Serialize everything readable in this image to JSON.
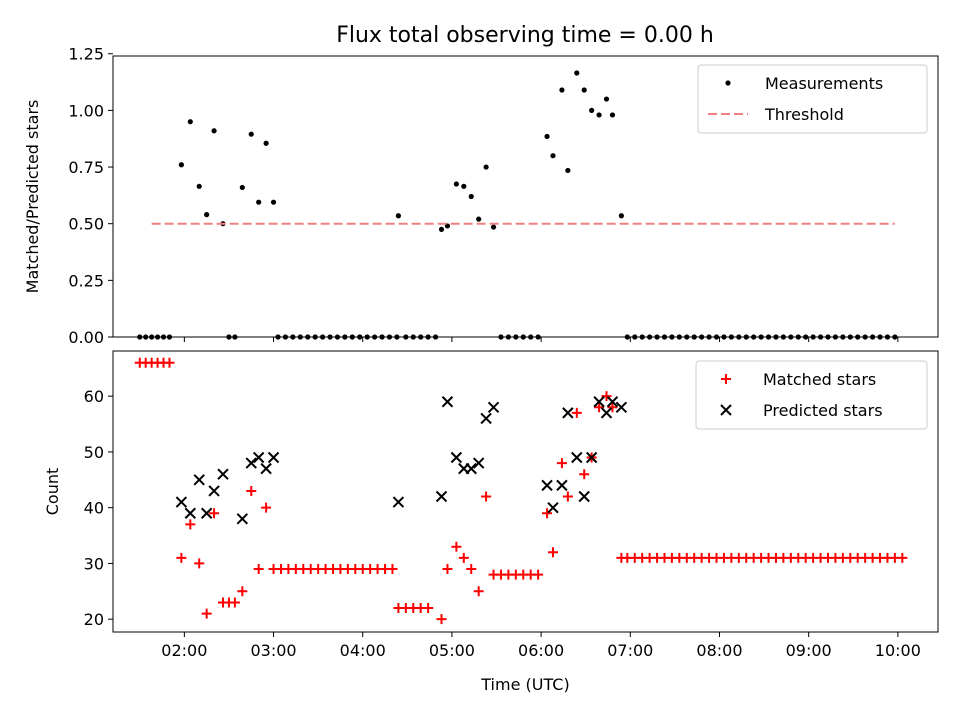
{
  "figure": {
    "title": "Flux total observing time = 0.00 h"
  },
  "chart_data": [
    {
      "type": "scatter",
      "ylabel": "Matched/Predicted stars",
      "xlabel": "",
      "x_format": "time-HH:MM",
      "xlim": [
        "01:12",
        "10:27"
      ],
      "ylim": [
        0,
        1.24
      ],
      "y_ticks": [
        0.0,
        0.25,
        0.5,
        0.75,
        1.0,
        1.25
      ],
      "y_tick_labels": [
        "0.00",
        "0.25",
        "0.50",
        "0.75",
        "1.00",
        "1.25"
      ],
      "x_ticks": [
        "02:00",
        "03:00",
        "04:00",
        "05:00",
        "06:00",
        "07:00",
        "08:00",
        "09:00",
        "10:00"
      ],
      "legend": {
        "placement": "top-right",
        "entries": [
          {
            "label": "Measurements",
            "marker": "dot",
            "color": "#000000"
          },
          {
            "label": "Threshold",
            "marker": "dashed-line",
            "color": "#f08080"
          }
        ]
      },
      "series": [
        {
          "name": "Measurements",
          "marker": "dot",
          "color": "#000000",
          "points": [
            [
              "01:30",
              0
            ],
            [
              "01:34",
              0
            ],
            [
              "01:38",
              0
            ],
            [
              "01:42",
              0
            ],
            [
              "01:46",
              0
            ],
            [
              "01:50",
              0
            ],
            [
              "01:58",
              0.76
            ],
            [
              "02:04",
              0.95
            ],
            [
              "02:10",
              0.665
            ],
            [
              "02:15",
              0.54
            ],
            [
              "02:20",
              0.91
            ],
            [
              "02:26",
              0.5
            ],
            [
              "02:30",
              0
            ],
            [
              "02:34",
              0
            ],
            [
              "02:39",
              0.66
            ],
            [
              "02:45",
              0.895
            ],
            [
              "02:50",
              0.595
            ],
            [
              "02:55",
              0.855
            ],
            [
              "03:00",
              0.595
            ],
            [
              "03:03",
              0
            ],
            [
              "03:08",
              0
            ],
            [
              "03:13",
              0
            ],
            [
              "03:18",
              0
            ],
            [
              "03:23",
              0
            ],
            [
              "03:28",
              0
            ],
            [
              "03:33",
              0
            ],
            [
              "03:38",
              0
            ],
            [
              "03:43",
              0
            ],
            [
              "03:48",
              0
            ],
            [
              "03:53",
              0
            ],
            [
              "03:58",
              0
            ],
            [
              "04:03",
              0
            ],
            [
              "04:08",
              0
            ],
            [
              "04:13",
              0
            ],
            [
              "04:18",
              0
            ],
            [
              "04:23",
              0
            ],
            [
              "04:24",
              0.535
            ],
            [
              "04:29",
              0
            ],
            [
              "04:34",
              0
            ],
            [
              "04:39",
              0
            ],
            [
              "04:44",
              0
            ],
            [
              "04:49",
              0
            ],
            [
              "04:53",
              0.475
            ],
            [
              "04:57",
              0.49
            ],
            [
              "05:03",
              0.675
            ],
            [
              "05:08",
              0.665
            ],
            [
              "05:13",
              0.62
            ],
            [
              "05:18",
              0.52
            ],
            [
              "05:23",
              0.75
            ],
            [
              "05:28",
              0.485
            ],
            [
              "05:33",
              0
            ],
            [
              "05:38",
              0
            ],
            [
              "05:43",
              0
            ],
            [
              "05:48",
              0
            ],
            [
              "05:53",
              0
            ],
            [
              "05:58",
              0
            ],
            [
              "06:04",
              0.885
            ],
            [
              "06:08",
              0.8
            ],
            [
              "06:14",
              1.09
            ],
            [
              "06:18",
              0.735
            ],
            [
              "06:24",
              1.165
            ],
            [
              "06:29",
              1.09
            ],
            [
              "06:34",
              1.0
            ],
            [
              "06:39",
              0.98
            ],
            [
              "06:44",
              1.05
            ],
            [
              "06:48",
              0.98
            ],
            [
              "06:54",
              0.535
            ],
            [
              "06:58",
              0
            ],
            [
              "07:03",
              0
            ],
            [
              "07:08",
              0
            ],
            [
              "07:13",
              0
            ],
            [
              "07:18",
              0
            ],
            [
              "07:23",
              0
            ],
            [
              "07:28",
              0
            ],
            [
              "07:33",
              0
            ],
            [
              "07:38",
              0
            ],
            [
              "07:43",
              0
            ],
            [
              "07:48",
              0
            ],
            [
              "07:53",
              0
            ],
            [
              "07:58",
              0
            ],
            [
              "08:03",
              0
            ],
            [
              "08:08",
              0
            ],
            [
              "08:13",
              0
            ],
            [
              "08:18",
              0
            ],
            [
              "08:23",
              0
            ],
            [
              "08:28",
              0
            ],
            [
              "08:33",
              0
            ],
            [
              "08:38",
              0
            ],
            [
              "08:43",
              0
            ],
            [
              "08:48",
              0
            ],
            [
              "08:53",
              0
            ],
            [
              "08:58",
              0
            ],
            [
              "09:03",
              0
            ],
            [
              "09:08",
              0
            ],
            [
              "09:13",
              0
            ],
            [
              "09:18",
              0
            ],
            [
              "09:23",
              0
            ],
            [
              "09:28",
              0
            ],
            [
              "09:33",
              0
            ],
            [
              "09:38",
              0
            ],
            [
              "09:43",
              0
            ],
            [
              "09:48",
              0
            ],
            [
              "09:53",
              0
            ],
            [
              "09:58",
              0
            ]
          ]
        },
        {
          "name": "Threshold",
          "marker": "dashed-line",
          "color": "#f08080",
          "points": [
            [
              "01:38",
              0.5
            ],
            [
              "09:58",
              0.5
            ]
          ]
        }
      ]
    },
    {
      "type": "scatter",
      "ylabel": "Count",
      "xlabel": "Time (UTC)",
      "x_format": "time-HH:MM",
      "xlim": [
        "01:12",
        "10:27"
      ],
      "ylim": [
        17.7,
        68.1
      ],
      "y_ticks": [
        20,
        30,
        40,
        50,
        60
      ],
      "y_tick_labels": [
        "20",
        "30",
        "40",
        "50",
        "60"
      ],
      "x_ticks": [
        "02:00",
        "03:00",
        "04:00",
        "05:00",
        "06:00",
        "07:00",
        "08:00",
        "09:00",
        "10:00"
      ],
      "x_tick_labels": [
        "02:00",
        "03:00",
        "04:00",
        "05:00",
        "06:00",
        "07:00",
        "08:00",
        "09:00",
        "10:00"
      ],
      "legend": {
        "placement": "top-right",
        "entries": [
          {
            "label": "Matched stars",
            "marker": "plus",
            "color": "#ff0000"
          },
          {
            "label": "Predicted stars",
            "marker": "x",
            "color": "#000000"
          }
        ]
      },
      "series": [
        {
          "name": "Matched stars",
          "marker": "plus",
          "color": "#ff0000",
          "points": [
            [
              "01:30",
              66
            ],
            [
              "01:34",
              66
            ],
            [
              "01:38",
              66
            ],
            [
              "01:42",
              66
            ],
            [
              "01:46",
              66
            ],
            [
              "01:50",
              66
            ],
            [
              "01:58",
              31
            ],
            [
              "02:04",
              37
            ],
            [
              "02:10",
              30
            ],
            [
              "02:15",
              21
            ],
            [
              "02:20",
              39
            ],
            [
              "02:26",
              23
            ],
            [
              "02:30",
              23
            ],
            [
              "02:34",
              23
            ],
            [
              "02:39",
              25
            ],
            [
              "02:45",
              43
            ],
            [
              "02:50",
              29
            ],
            [
              "02:55",
              40
            ],
            [
              "03:00",
              29
            ],
            [
              "03:05",
              29
            ],
            [
              "03:10",
              29
            ],
            [
              "03:15",
              29
            ],
            [
              "03:20",
              29
            ],
            [
              "03:25",
              29
            ],
            [
              "03:30",
              29
            ],
            [
              "03:35",
              29
            ],
            [
              "03:40",
              29
            ],
            [
              "03:45",
              29
            ],
            [
              "03:50",
              29
            ],
            [
              "03:55",
              29
            ],
            [
              "04:00",
              29
            ],
            [
              "04:05",
              29
            ],
            [
              "04:10",
              29
            ],
            [
              "04:15",
              29
            ],
            [
              "04:20",
              29
            ],
            [
              "04:24",
              22
            ],
            [
              "04:29",
              22
            ],
            [
              "04:34",
              22
            ],
            [
              "04:39",
              22
            ],
            [
              "04:44",
              22
            ],
            [
              "04:53",
              20
            ],
            [
              "04:57",
              29
            ],
            [
              "05:03",
              33
            ],
            [
              "05:08",
              31
            ],
            [
              "05:13",
              29
            ],
            [
              "05:18",
              25
            ],
            [
              "05:23",
              42
            ],
            [
              "05:28",
              28
            ],
            [
              "05:33",
              28
            ],
            [
              "05:38",
              28
            ],
            [
              "05:43",
              28
            ],
            [
              "05:48",
              28
            ],
            [
              "05:53",
              28
            ],
            [
              "05:58",
              28
            ],
            [
              "06:04",
              39
            ],
            [
              "06:08",
              32
            ],
            [
              "06:14",
              48
            ],
            [
              "06:18",
              42
            ],
            [
              "06:24",
              57
            ],
            [
              "06:29",
              46
            ],
            [
              "06:34",
              49
            ],
            [
              "06:39",
              58
            ],
            [
              "06:44",
              60
            ],
            [
              "06:48",
              58
            ],
            [
              "06:54",
              31
            ],
            [
              "06:58",
              31
            ],
            [
              "07:03",
              31
            ],
            [
              "07:08",
              31
            ],
            [
              "07:13",
              31
            ],
            [
              "07:18",
              31
            ],
            [
              "07:23",
              31
            ],
            [
              "07:28",
              31
            ],
            [
              "07:33",
              31
            ],
            [
              "07:38",
              31
            ],
            [
              "07:43",
              31
            ],
            [
              "07:48",
              31
            ],
            [
              "07:53",
              31
            ],
            [
              "07:58",
              31
            ],
            [
              "08:03",
              31
            ],
            [
              "08:08",
              31
            ],
            [
              "08:13",
              31
            ],
            [
              "08:18",
              31
            ],
            [
              "08:23",
              31
            ],
            [
              "08:28",
              31
            ],
            [
              "08:33",
              31
            ],
            [
              "08:38",
              31
            ],
            [
              "08:43",
              31
            ],
            [
              "08:48",
              31
            ],
            [
              "08:53",
              31
            ],
            [
              "08:58",
              31
            ],
            [
              "09:03",
              31
            ],
            [
              "09:08",
              31
            ],
            [
              "09:13",
              31
            ],
            [
              "09:18",
              31
            ],
            [
              "09:23",
              31
            ],
            [
              "09:28",
              31
            ],
            [
              "09:33",
              31
            ],
            [
              "09:38",
              31
            ],
            [
              "09:43",
              31
            ],
            [
              "09:48",
              31
            ],
            [
              "09:53",
              31
            ],
            [
              "09:58",
              31
            ],
            [
              "10:03",
              31
            ]
          ]
        },
        {
          "name": "Predicted stars",
          "marker": "x",
          "color": "#000000",
          "points": [
            [
              "01:58",
              41
            ],
            [
              "02:04",
              39
            ],
            [
              "02:10",
              45
            ],
            [
              "02:15",
              39
            ],
            [
              "02:20",
              43
            ],
            [
              "02:26",
              46
            ],
            [
              "02:39",
              38
            ],
            [
              "02:45",
              48
            ],
            [
              "02:50",
              49
            ],
            [
              "02:55",
              47
            ],
            [
              "03:00",
              49
            ],
            [
              "04:24",
              41
            ],
            [
              "04:53",
              42
            ],
            [
              "04:57",
              59
            ],
            [
              "05:03",
              49
            ],
            [
              "05:08",
              47
            ],
            [
              "05:13",
              47
            ],
            [
              "05:18",
              48
            ],
            [
              "05:23",
              56
            ],
            [
              "05:28",
              58
            ],
            [
              "06:04",
              44
            ],
            [
              "06:08",
              40
            ],
            [
              "06:14",
              44
            ],
            [
              "06:18",
              57
            ],
            [
              "06:24",
              49
            ],
            [
              "06:29",
              42
            ],
            [
              "06:34",
              49
            ],
            [
              "06:39",
              59
            ],
            [
              "06:44",
              57
            ],
            [
              "06:48",
              59
            ],
            [
              "06:54",
              58
            ]
          ]
        }
      ]
    }
  ]
}
